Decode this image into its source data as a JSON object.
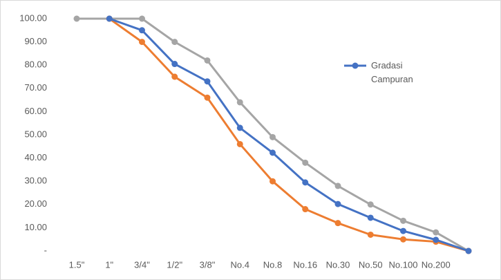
{
  "chart_data": {
    "type": "line",
    "categories": [
      "1.5\"",
      "1\"",
      "3/4\"",
      "1/2\"",
      "3/8\"",
      "No.4",
      "No.8",
      "No.16",
      "No.30",
      "No.50",
      "No.100",
      "No.200",
      null
    ],
    "series": [
      {
        "color": "#a5a5a5",
        "values": [
          100,
          100,
          100,
          90,
          82,
          64,
          49,
          38,
          28,
          20,
          13,
          8,
          0
        ]
      },
      {
        "color": "#ed7d31",
        "values": [
          null,
          100,
          90,
          75,
          66,
          46,
          30,
          18,
          12,
          7,
          5,
          4,
          0
        ]
      },
      {
        "name": "Gradasi Campuran",
        "color": "#4472c4",
        "values": [
          null,
          100,
          95,
          80.5,
          73,
          53,
          42.3,
          29.5,
          20.2,
          14.3,
          8.6,
          4.8,
          0
        ]
      }
    ],
    "ylim": [
      0,
      100
    ],
    "yticks": [
      {
        "value": 0,
        "label": "-"
      },
      {
        "value": 10,
        "label": "10.00"
      },
      {
        "value": 20,
        "label": "20.00"
      },
      {
        "value": 30,
        "label": "30.00"
      },
      {
        "value": 40,
        "label": "40.00"
      },
      {
        "value": 50,
        "label": "50.00"
      },
      {
        "value": 60,
        "label": "60.00"
      },
      {
        "value": 70,
        "label": "70.00"
      },
      {
        "value": 80,
        "label": "80.00"
      },
      {
        "value": 90,
        "label": "90.00"
      },
      {
        "value": 100,
        "label": "100.00"
      }
    ],
    "grid": false,
    "legend": "upper right"
  }
}
